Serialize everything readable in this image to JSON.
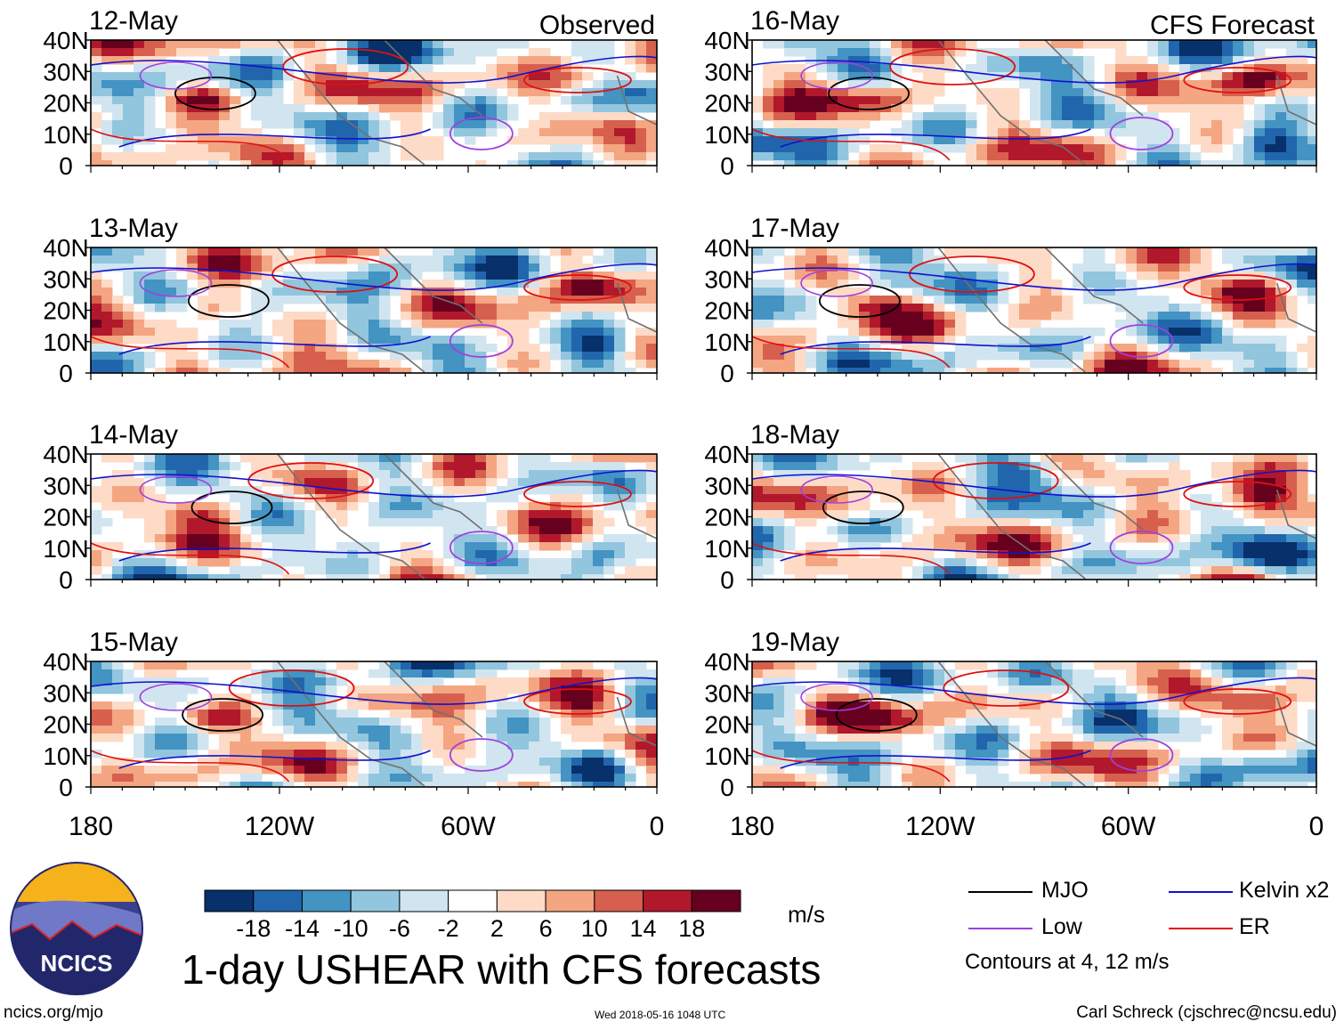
{
  "title": "1-day USHEAR with CFS forecasts",
  "source_url": "ncics.org/mjo",
  "timestamp": "Wed 2018-05-16 1048 UTC",
  "author": "Carl Schreck (cjschrec@ncsu.edu)",
  "logo": {
    "text": "NCICS"
  },
  "columns": {
    "left_header": "Observed",
    "right_header": "CFS Forecast"
  },
  "panels": [
    {
      "date": "12-May",
      "kind": "observed"
    },
    {
      "date": "13-May",
      "kind": "observed"
    },
    {
      "date": "14-May",
      "kind": "observed"
    },
    {
      "date": "15-May",
      "kind": "observed"
    },
    {
      "date": "16-May",
      "kind": "forecast"
    },
    {
      "date": "17-May",
      "kind": "forecast"
    },
    {
      "date": "18-May",
      "kind": "forecast"
    },
    {
      "date": "19-May",
      "kind": "forecast"
    }
  ],
  "lat_labels": [
    "40N",
    "30N",
    "20N",
    "10N",
    "0"
  ],
  "lon_labels": [
    "180",
    "120W",
    "60W",
    "0"
  ],
  "colorbar": {
    "units": "m/s",
    "tick_labels": [
      "-18",
      "-14",
      "-10",
      "-6",
      "-2",
      "2",
      "6",
      "10",
      "14",
      "18"
    ],
    "colors": [
      "#08306b",
      "#2166ac",
      "#4393c3",
      "#92c5de",
      "#d1e5f0",
      "#ffffff",
      "#fddbc7",
      "#f4a582",
      "#d6604d",
      "#b2182b",
      "#67001f"
    ]
  },
  "legend": {
    "items": [
      {
        "label": "MJO",
        "color": "#000000"
      },
      {
        "label": "Kelvin x2",
        "color": "#1010d0"
      },
      {
        "label": "Low",
        "color": "#a040e0"
      },
      {
        "label": "ER",
        "color": "#e01010"
      }
    ],
    "note": "Contours at 4, 12 m/s"
  }
}
